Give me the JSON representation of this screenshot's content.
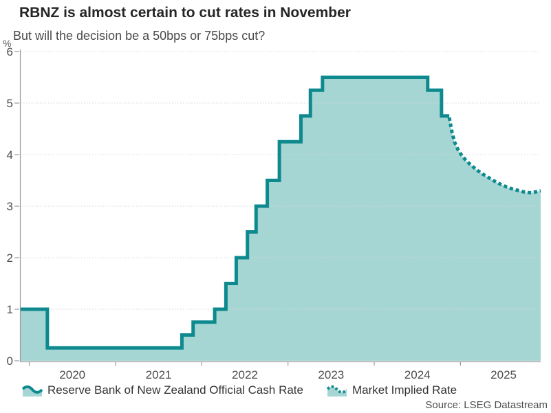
{
  "source": "Source: LSEG Datastream",
  "colors": {
    "line": "#0E8A8F",
    "fill": "#A6D6D3",
    "axis": "#999999",
    "grid": "#D4D4D4",
    "tick_label": "#4D4D4D",
    "title": "#262626",
    "subtitle": "#4A4A4A"
  },
  "chart_data": {
    "type": "area",
    "title": "RBNZ is almost certain to cut rates in November",
    "subtitle": "But will the decision be a 50bps or 75bps cut?",
    "ylabel": "%",
    "xlabel": "",
    "x_domain": [
      2019.9,
      2025.93
    ],
    "ylim": [
      0,
      6
    ],
    "y_ticks": [
      0,
      1,
      2,
      3,
      4,
      5,
      6
    ],
    "x_year_ticks": [
      2020,
      2021,
      2022,
      2023,
      2024,
      2025
    ],
    "x_tick_labels": [
      "2020",
      "2021",
      "2022",
      "2023",
      "2024",
      "2025"
    ],
    "grid": "dotted horizontal gridlines",
    "legend_position": "bottom",
    "series": [
      {
        "name": "Reserve Bank of New Zealand Official Cash Rate",
        "type": "step",
        "style": "solid",
        "points": [
          [
            2019.9,
            1.0
          ],
          [
            2020.21,
            0.25
          ],
          [
            2021.77,
            0.5
          ],
          [
            2021.9,
            0.75
          ],
          [
            2022.15,
            1.0
          ],
          [
            2022.28,
            1.5
          ],
          [
            2022.4,
            2.0
          ],
          [
            2022.53,
            2.5
          ],
          [
            2022.63,
            3.0
          ],
          [
            2022.76,
            3.5
          ],
          [
            2022.9,
            4.25
          ],
          [
            2023.15,
            4.75
          ],
          [
            2023.26,
            5.25
          ],
          [
            2023.4,
            5.5
          ],
          [
            2024.62,
            5.25
          ],
          [
            2024.78,
            4.75
          ],
          [
            2024.87,
            4.75
          ]
        ]
      },
      {
        "name": "Market Implied Rate",
        "type": "line",
        "style": "dotted",
        "points": [
          [
            2024.87,
            4.72
          ],
          [
            2024.9,
            4.45
          ],
          [
            2024.93,
            4.25
          ],
          [
            2024.97,
            4.1
          ],
          [
            2025.02,
            3.97
          ],
          [
            2025.08,
            3.86
          ],
          [
            2025.14,
            3.77
          ],
          [
            2025.2,
            3.69
          ],
          [
            2025.26,
            3.62
          ],
          [
            2025.33,
            3.55
          ],
          [
            2025.4,
            3.48
          ],
          [
            2025.47,
            3.42
          ],
          [
            2025.54,
            3.37
          ],
          [
            2025.61,
            3.33
          ],
          [
            2025.68,
            3.3
          ],
          [
            2025.75,
            3.27
          ],
          [
            2025.82,
            3.26
          ],
          [
            2025.88,
            3.28
          ],
          [
            2025.93,
            3.3
          ]
        ]
      }
    ]
  }
}
